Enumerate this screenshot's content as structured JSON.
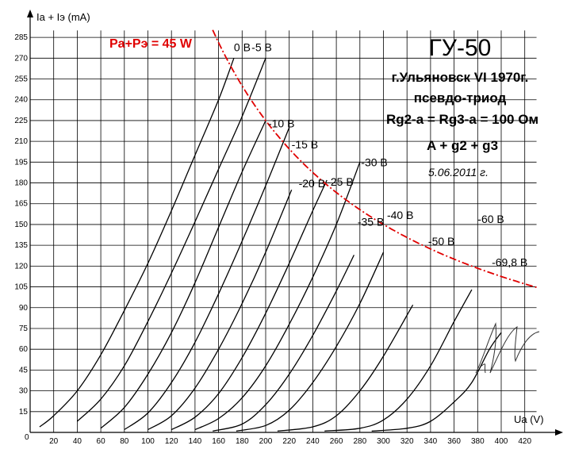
{
  "chart_data": {
    "type": "line",
    "title": "ГУ-50",
    "xlabel": "Ua (V)",
    "ylabel": "Ia + Iэ (mA)",
    "xlim": [
      0,
      430
    ],
    "ylim": [
      0,
      290
    ],
    "xticks": [
      20,
      40,
      60,
      80,
      100,
      120,
      140,
      160,
      180,
      200,
      220,
      240,
      260,
      280,
      300,
      320,
      340,
      360,
      380,
      400,
      420
    ],
    "yticks": [
      15,
      30,
      45,
      60,
      75,
      90,
      105,
      120,
      135,
      150,
      165,
      180,
      195,
      210,
      225,
      240,
      255,
      270,
      285
    ],
    "origin_label": "0",
    "grid": true,
    "info_lines": [
      "г.Ульяновск VI 1970г.",
      "псевдо-триод",
      "Rg2-a = Rg3-a = 100 Ом",
      "A + g2 + g3"
    ],
    "date_note": "5.06.2011 г.",
    "power_limit": {
      "label": "Pa+Pэ = 45 W",
      "color": "#e00000",
      "watts": 45
    },
    "series": [
      {
        "name": "0 В",
        "label_at": [
          173,
          275
        ],
        "points": [
          [
            8,
            4
          ],
          [
            20,
            12
          ],
          [
            40,
            30
          ],
          [
            60,
            56
          ],
          [
            80,
            88
          ],
          [
            100,
            122
          ],
          [
            120,
            160
          ],
          [
            140,
            200
          ],
          [
            160,
            240
          ],
          [
            173,
            270
          ]
        ]
      },
      {
        "name": "-5 В",
        "label_at": [
          188,
          275
        ],
        "points": [
          [
            40,
            8
          ],
          [
            60,
            24
          ],
          [
            80,
            48
          ],
          [
            100,
            80
          ],
          [
            120,
            115
          ],
          [
            140,
            152
          ],
          [
            160,
            190
          ],
          [
            180,
            228
          ],
          [
            200,
            270
          ]
        ]
      },
      {
        "name": "-10 В",
        "label_at": [
          202,
          220
        ],
        "points": [
          [
            60,
            3
          ],
          [
            80,
            18
          ],
          [
            100,
            42
          ],
          [
            120,
            72
          ],
          [
            140,
            108
          ],
          [
            160,
            148
          ],
          [
            180,
            188
          ],
          [
            200,
            225
          ]
        ]
      },
      {
        "name": "-15 В",
        "label_at": [
          222,
          205
        ],
        "points": [
          [
            80,
            2
          ],
          [
            100,
            14
          ],
          [
            120,
            36
          ],
          [
            140,
            65
          ],
          [
            160,
            100
          ],
          [
            180,
            138
          ],
          [
            200,
            178
          ],
          [
            220,
            220
          ]
        ]
      },
      {
        "name": "-20 В",
        "label_at": [
          228,
          177
        ],
        "points": [
          [
            100,
            2
          ],
          [
            120,
            12
          ],
          [
            140,
            32
          ],
          [
            160,
            60
          ],
          [
            180,
            93
          ],
          [
            200,
            130
          ],
          [
            222,
            175
          ]
        ]
      },
      {
        "name": "-25 В",
        "label_at": [
          252,
          178
        ],
        "points": [
          [
            120,
            2
          ],
          [
            140,
            11
          ],
          [
            160,
            28
          ],
          [
            180,
            54
          ],
          [
            200,
            86
          ],
          [
            220,
            122
          ],
          [
            240,
            160
          ],
          [
            252,
            182
          ]
        ]
      },
      {
        "name": "-30 В",
        "label_at": [
          281,
          192
        ],
        "points": [
          [
            140,
            2
          ],
          [
            160,
            10
          ],
          [
            180,
            25
          ],
          [
            200,
            48
          ],
          [
            220,
            78
          ],
          [
            240,
            112
          ],
          [
            260,
            150
          ],
          [
            280,
            195
          ]
        ]
      },
      {
        "name": "-35 В",
        "label_at": [
          278,
          149
        ],
        "points": [
          [
            155,
            1
          ],
          [
            180,
            6
          ],
          [
            200,
            20
          ],
          [
            220,
            42
          ],
          [
            240,
            70
          ],
          [
            260,
            102
          ],
          [
            275,
            128
          ]
        ]
      },
      {
        "name": "-40 В",
        "label_at": [
          303,
          154
        ],
        "points": [
          [
            175,
            1
          ],
          [
            200,
            5
          ],
          [
            220,
            16
          ],
          [
            240,
            36
          ],
          [
            260,
            62
          ],
          [
            280,
            93
          ],
          [
            300,
            130
          ]
        ]
      },
      {
        "name": "-50 В",
        "label_at": [
          338,
          135
        ],
        "points": [
          [
            210,
            1
          ],
          [
            240,
            4
          ],
          [
            260,
            12
          ],
          [
            280,
            30
          ],
          [
            300,
            55
          ],
          [
            325,
            92
          ]
        ]
      },
      {
        "name": "-60 В",
        "label_at": [
          380,
          151
        ],
        "points": [
          [
            250,
            1
          ],
          [
            280,
            3
          ],
          [
            300,
            9
          ],
          [
            320,
            24
          ],
          [
            340,
            48
          ],
          [
            360,
            80
          ],
          [
            375,
            103
          ]
        ]
      },
      {
        "name": "-69,8 В",
        "label_at": [
          392,
          120
        ],
        "points": [
          [
            290,
            1
          ],
          [
            320,
            3
          ],
          [
            340,
            8
          ],
          [
            360,
            22
          ],
          [
            375,
            36
          ],
          [
            390,
            60
          ],
          [
            400,
            72
          ]
        ]
      }
    ]
  }
}
